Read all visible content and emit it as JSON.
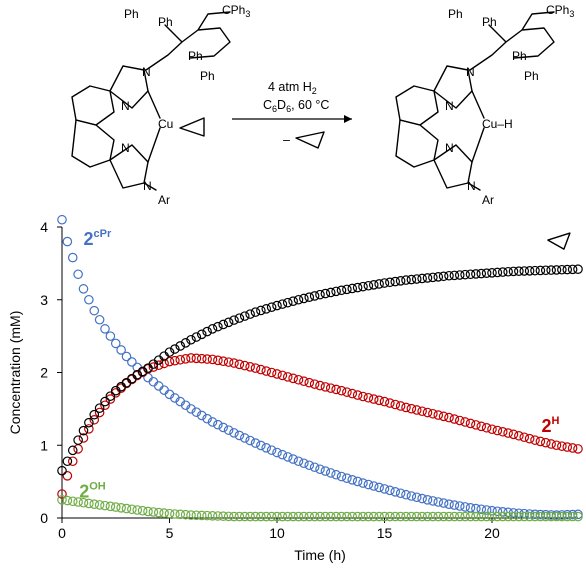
{
  "scheme": {
    "reactant_labels": {
      "ph_top_left": "Ph",
      "ph_top_mid": "Ph",
      "cph3": "CPh",
      "cph3_sub": "3",
      "ph_right": "Ph",
      "ph_lower": "Ph",
      "n_top": "N",
      "n_ring1": "N",
      "n_ring2": "N",
      "n_ar": "N",
      "ar": "Ar",
      "cu": "Cu"
    },
    "product_labels": {
      "ph_top_left": "Ph",
      "ph_top_mid": "Ph",
      "cph3": "CPh",
      "cph3_sub": "3",
      "ph_right": "Ph",
      "ph_lower": "Ph",
      "n_top": "N",
      "n_ring1": "N",
      "n_ring2": "N",
      "n_ar": "N",
      "ar": "Ar",
      "cu_h": "Cu–H"
    },
    "conditions": {
      "line1": "4 atm H",
      "line1_sub": "2",
      "line2_a": "C",
      "line2_sub1": "6",
      "line2_b": "D",
      "line2_sub2": "6",
      "line2_c": ", 60 °C",
      "line3_minus": "–"
    }
  },
  "chart_data": {
    "type": "scatter",
    "xlabel": "Time (h)",
    "ylabel": "Concentration (mM)",
    "xlim": [
      0,
      24
    ],
    "ylim": [
      0,
      4
    ],
    "xticks": [
      0,
      5,
      10,
      15,
      20
    ],
    "yticks": [
      0,
      1,
      2,
      3,
      4
    ],
    "grid": false,
    "marker": "open-circle",
    "series": [
      {
        "name": "2",
        "name_sup": "cPr",
        "color": "#4472c4",
        "x": [
          0,
          0.25,
          0.5,
          0.75,
          1,
          1.5,
          2,
          2.5,
          3,
          3.5,
          4,
          5,
          6,
          7,
          8,
          9,
          10,
          11,
          12,
          13,
          14,
          15,
          16,
          17,
          18,
          19,
          20,
          21,
          22,
          23,
          24
        ],
        "y": [
          4.1,
          3.8,
          3.58,
          3.35,
          3.15,
          2.85,
          2.6,
          2.4,
          2.22,
          2.07,
          1.93,
          1.7,
          1.5,
          1.32,
          1.17,
          1.03,
          0.9,
          0.78,
          0.67,
          0.57,
          0.48,
          0.4,
          0.32,
          0.25,
          0.19,
          0.14,
          0.1,
          0.07,
          0.05,
          0.04,
          0.05
        ]
      },
      {
        "name": "2",
        "name_sup": "H",
        "color": "#c00000",
        "x": [
          0,
          0.25,
          0.5,
          0.75,
          1,
          1.5,
          2,
          2.5,
          3,
          3.5,
          4,
          5,
          6,
          7,
          8,
          9,
          10,
          11,
          12,
          13,
          14,
          15,
          16,
          17,
          18,
          19,
          20,
          21,
          22,
          23,
          24
        ],
        "y": [
          0.33,
          0.58,
          0.78,
          0.95,
          1.1,
          1.35,
          1.55,
          1.72,
          1.85,
          1.96,
          2.05,
          2.15,
          2.2,
          2.18,
          2.13,
          2.06,
          1.98,
          1.9,
          1.82,
          1.75,
          1.67,
          1.6,
          1.52,
          1.45,
          1.38,
          1.3,
          1.22,
          1.15,
          1.07,
          1.0,
          0.95
        ]
      },
      {
        "name": "",
        "name_note": "cyclopropane",
        "color": "#000000",
        "x": [
          0,
          0.25,
          0.5,
          0.75,
          1,
          1.5,
          2,
          2.5,
          3,
          3.5,
          4,
          5,
          6,
          7,
          8,
          9,
          10,
          11,
          12,
          13,
          14,
          15,
          16,
          17,
          18,
          19,
          20,
          21,
          22,
          23,
          24
        ],
        "y": [
          0.65,
          0.78,
          0.93,
          1.07,
          1.2,
          1.42,
          1.6,
          1.75,
          1.86,
          1.97,
          2.06,
          2.28,
          2.45,
          2.6,
          2.72,
          2.83,
          2.92,
          3.0,
          3.07,
          3.13,
          3.18,
          3.23,
          3.27,
          3.3,
          3.33,
          3.35,
          3.37,
          3.39,
          3.4,
          3.41,
          3.42
        ]
      },
      {
        "name": "2",
        "name_sup": "OH",
        "color": "#70ad47",
        "x": [
          0,
          0.25,
          0.5,
          0.75,
          1,
          1.5,
          2,
          2.5,
          3,
          3.5,
          4,
          5,
          6,
          7,
          8,
          9,
          10,
          11,
          12,
          13,
          14,
          15,
          16,
          17,
          18,
          19,
          20,
          21,
          22,
          23,
          24
        ],
        "y": [
          0.25,
          0.24,
          0.23,
          0.22,
          0.21,
          0.19,
          0.17,
          0.15,
          0.13,
          0.11,
          0.09,
          0.06,
          0.04,
          0.03,
          0.02,
          0.02,
          0.02,
          0.02,
          0.02,
          0.02,
          0.02,
          0.02,
          0.02,
          0.02,
          0.02,
          0.02,
          0.02,
          0.02,
          0.02,
          0.02,
          0.02
        ]
      }
    ]
  }
}
